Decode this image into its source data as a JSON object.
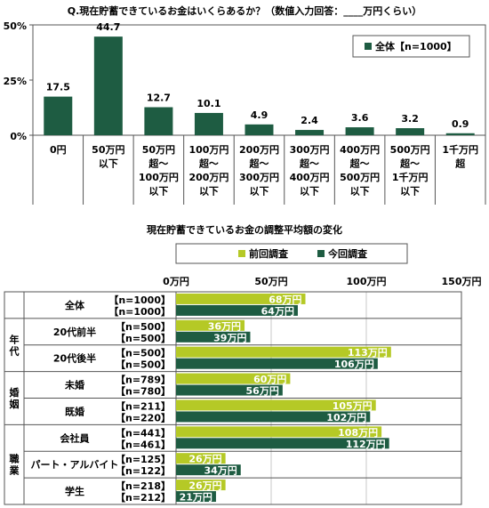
{
  "colors": {
    "dark": "#1e5c42",
    "lime": "#b5c926",
    "grid": "#c8c8c8",
    "box": "#555555"
  },
  "chart_data": [
    {
      "type": "bar",
      "title": "Q.現在貯蓄できているお金はいくらあるか？（数値入力回答：____万円くらい）",
      "categories": [
        [
          "0円"
        ],
        [
          "50万円",
          "以下"
        ],
        [
          "50万円",
          "超～",
          "100万円",
          "以下"
        ],
        [
          "100万円",
          "超～",
          "200万円",
          "以下"
        ],
        [
          "200万円",
          "超～",
          "300万円",
          "以下"
        ],
        [
          "300万円",
          "超～",
          "400万円",
          "以下"
        ],
        [
          "400万円",
          "超～",
          "500万円",
          "以下"
        ],
        [
          "500万円",
          "超～",
          "1千万円",
          "以下"
        ],
        [
          "1千万円",
          "超"
        ]
      ],
      "series": [
        {
          "name": "全体【n=1000】",
          "values": [
            17.5,
            44.7,
            12.7,
            10.1,
            4.9,
            2.4,
            3.6,
            3.2,
            0.9
          ]
        }
      ],
      "yticks": [
        "0%",
        "25%",
        "50%"
      ],
      "ylim": [
        0,
        50
      ],
      "legend_position": "top-right",
      "grid": false
    },
    {
      "type": "bar",
      "orientation": "horizontal",
      "title": "現在貯蓄できているお金の調整平均額の変化",
      "legend": [
        "前回調査",
        "今回調査"
      ],
      "xticks": [
        "0万円",
        "50万円",
        "100万円",
        "150万円"
      ],
      "xlim": [
        0,
        150
      ],
      "unit": "万円",
      "groups": [
        {
          "section": "",
          "label": "全体",
          "rows": [
            {
              "n": "【n=1000】",
              "value": 68
            },
            {
              "n": "【n=1000】",
              "value": 64
            }
          ]
        },
        {
          "section": "年代",
          "label": "20代前半",
          "rows": [
            {
              "n": "【n=500】",
              "value": 36
            },
            {
              "n": "【n=500】",
              "value": 39
            }
          ]
        },
        {
          "section": "年代",
          "label": "20代後半",
          "rows": [
            {
              "n": "【n=500】",
              "value": 113
            },
            {
              "n": "【n=500】",
              "value": 106
            }
          ]
        },
        {
          "section": "婚姻",
          "label": "未婚",
          "rows": [
            {
              "n": "【n=789】",
              "value": 60
            },
            {
              "n": "【n=780】",
              "value": 56
            }
          ]
        },
        {
          "section": "婚姻",
          "label": "既婚",
          "rows": [
            {
              "n": "【n=211】",
              "value": 105
            },
            {
              "n": "【n=220】",
              "value": 102
            }
          ]
        },
        {
          "section": "職業",
          "label": "会社員",
          "rows": [
            {
              "n": "【n=441】",
              "value": 108
            },
            {
              "n": "【n=461】",
              "value": 112
            }
          ]
        },
        {
          "section": "職業",
          "label": "パート・アルバイト",
          "rows": [
            {
              "n": "【n=125】",
              "value": 26
            },
            {
              "n": "【n=122】",
              "value": 34
            }
          ]
        },
        {
          "section": "職業",
          "label": "学生",
          "rows": [
            {
              "n": "【n=218】",
              "value": 26
            },
            {
              "n": "【n=212】",
              "value": 21
            }
          ]
        }
      ],
      "sections": [
        "年代",
        "婚姻",
        "職業"
      ]
    }
  ]
}
